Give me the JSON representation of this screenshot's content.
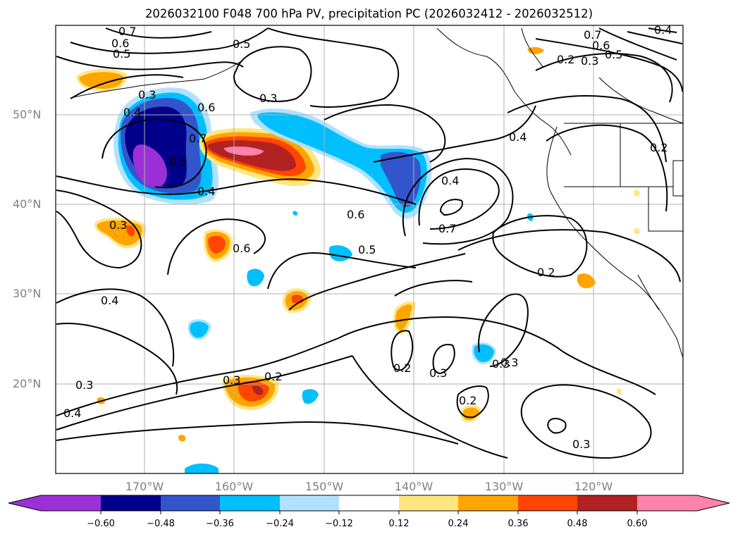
{
  "title": "2026032100 F048 700 hPa PV, precipitation PC (2026032412 - 2026032512)",
  "map": {
    "lon_labels": [
      "170°W",
      "160°W",
      "150°W",
      "140°W",
      "130°W",
      "120°W"
    ],
    "lat_labels": [
      "50°N",
      "40°N",
      "30°N",
      "20°N"
    ],
    "contour_labels": [
      "0.7",
      "0.6",
      "0.5",
      "0.5",
      "0.3",
      "0.3",
      "0.4",
      "0.6",
      "0.7",
      "0.5",
      "0.4",
      "0.3",
      "0.6",
      "0.6",
      "0.5",
      "0.7",
      "0.4",
      "0.3",
      "0.2",
      "0.2",
      "0.3",
      "0.3",
      "0.3",
      "0.2",
      "0.3",
      "0.4",
      "0.2",
      "0.3",
      "0.7",
      "0.6",
      "0.5",
      "0.2",
      "0.3",
      "0.4",
      "0.4",
      "0.2",
      "0.4"
    ],
    "grid": true,
    "coastlines": true
  },
  "colorbar": {
    "tick_labels": [
      "−0.60",
      "−0.48",
      "−0.36",
      "−0.24",
      "−0.12",
      "0.12",
      "0.24",
      "0.36",
      "0.48",
      "0.60"
    ],
    "colors": [
      "#9b30d8",
      "#00008b",
      "#3355cc",
      "#00bfff",
      "#b0e2ff",
      "#ffffff",
      "#ffe680",
      "#ffa500",
      "#ff4500",
      "#b22222",
      "#ff82ab"
    ],
    "extend": "both"
  }
}
